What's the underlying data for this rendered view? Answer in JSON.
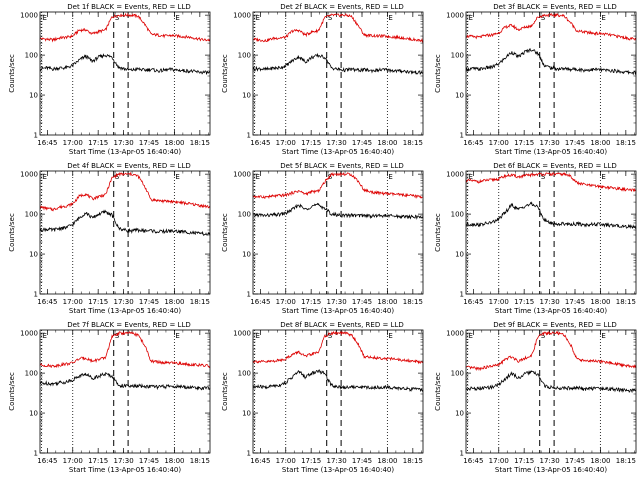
{
  "chart_data": {
    "type": "line",
    "ylabel": "Counts/sec",
    "xlabel": "Start Time (13-Apr-05 16:40:40)",
    "yscale": "log",
    "ylim": [
      1,
      1200
    ],
    "xlim": [
      "16:40:40",
      "18:21:00"
    ],
    "x_tick_labels": [
      "16:45",
      "17:00",
      "17:15",
      "17:30",
      "17:45",
      "18:00",
      "18:15"
    ],
    "x_tick_minutes": [
      4.33,
      19.33,
      34.33,
      49.33,
      64.33,
      79.33,
      94.33
    ],
    "y_tick_labels": [
      "1",
      "10",
      "100",
      "1000"
    ],
    "y_tick_values": [
      1,
      10,
      100,
      1000
    ],
    "series_legend": "BLACK = Events, RED = LLD",
    "colors": {
      "events": "#000000",
      "lld": "#dd0000"
    },
    "markers": [
      {
        "label": "E",
        "minute": 0.9,
        "style": "dotted"
      },
      {
        "label": "",
        "minute": 19.33,
        "style": "dotted"
      },
      {
        "label": "S",
        "minute": 43.5,
        "style": "dashed"
      },
      {
        "label": "",
        "minute": 52.0,
        "style": "dashed"
      },
      {
        "label": "E",
        "minute": 79.3,
        "style": "dotted"
      }
    ],
    "panels": [
      {
        "title": "Det 1f BLACK = Events, RED = LLD",
        "lld": [
          260,
          250,
          240,
          270,
          280,
          300,
          420,
          430,
          340,
          390,
          420,
          900,
          1000,
          1000,
          1000,
          950,
          600,
          330,
          320,
          300,
          310,
          300,
          290,
          280,
          260,
          240,
          240
        ],
        "events": [
          45,
          48,
          45,
          48,
          48,
          55,
          75,
          95,
          70,
          90,
          100,
          90,
          50,
          45,
          42,
          45,
          42,
          44,
          40,
          42,
          44,
          42,
          41,
          40,
          38,
          37,
          36
        ]
      },
      {
        "title": "Det 2f BLACK = Events, RED = LLD",
        "lld": [
          250,
          240,
          230,
          260,
          270,
          280,
          400,
          420,
          320,
          380,
          410,
          880,
          1000,
          1000,
          1000,
          950,
          580,
          320,
          310,
          300,
          300,
          290,
          280,
          270,
          250,
          240,
          230
        ],
        "events": [
          45,
          46,
          44,
          47,
          48,
          54,
          72,
          92,
          68,
          88,
          98,
          88,
          48,
          44,
          42,
          44,
          42,
          43,
          41,
          42,
          43,
          42,
          40,
          40,
          38,
          37,
          36
        ]
      },
      {
        "title": "Det 3f BLACK = Events, RED = LLD",
        "lld": [
          300,
          290,
          280,
          310,
          320,
          360,
          500,
          560,
          430,
          500,
          540,
          900,
          1000,
          1000,
          1000,
          960,
          650,
          400,
          380,
          360,
          350,
          340,
          320,
          300,
          280,
          260,
          250
        ],
        "events": [
          44,
          46,
          44,
          48,
          50,
          60,
          85,
          120,
          90,
          120,
          140,
          110,
          55,
          48,
          45,
          46,
          44,
          45,
          42,
          43,
          44,
          42,
          41,
          40,
          38,
          37,
          36
        ]
      },
      {
        "title": "Det 4f BLACK = Events, RED = LLD",
        "lld": [
          150,
          140,
          130,
          150,
          160,
          180,
          280,
          320,
          240,
          280,
          300,
          800,
          1000,
          1000,
          1000,
          900,
          500,
          230,
          220,
          210,
          210,
          200,
          190,
          180,
          170,
          160,
          150
        ],
        "events": [
          40,
          42,
          40,
          44,
          46,
          55,
          80,
          110,
          80,
          100,
          115,
          95,
          45,
          40,
          38,
          40,
          38,
          39,
          36,
          37,
          38,
          37,
          36,
          35,
          33,
          32,
          31
        ]
      },
      {
        "title": "Det 5f BLACK = Events, RED = LLD",
        "lld": [
          280,
          270,
          270,
          280,
          290,
          300,
          340,
          380,
          320,
          360,
          380,
          650,
          1000,
          1000,
          1000,
          1000,
          700,
          400,
          360,
          340,
          330,
          320,
          310,
          300,
          290,
          280,
          270
        ],
        "events": [
          95,
          95,
          92,
          95,
          98,
          105,
          130,
          170,
          130,
          160,
          170,
          140,
          100,
          95,
          92,
          94,
          92,
          93,
          90,
          91,
          92,
          90,
          88,
          87,
          86,
          85,
          84
        ]
      },
      {
        "title": "Det 6f BLACK = Events, RED = LLD",
        "lld": [
          700,
          680,
          650,
          700,
          720,
          760,
          900,
          950,
          850,
          920,
          960,
          1000,
          1000,
          1000,
          1000,
          1000,
          900,
          600,
          560,
          520,
          500,
          480,
          460,
          440,
          420,
          400,
          390
        ],
        "events": [
          55,
          56,
          54,
          58,
          62,
          75,
          110,
          170,
          130,
          160,
          180,
          150,
          70,
          60,
          56,
          58,
          56,
          57,
          54,
          55,
          56,
          54,
          52,
          51,
          50,
          49,
          48
        ]
      },
      {
        "title": "Det 7f BLACK = Events, RED = LLD",
        "lld": [
          160,
          155,
          150,
          160,
          170,
          180,
          230,
          240,
          200,
          220,
          240,
          800,
          1000,
          1000,
          1000,
          900,
          500,
          200,
          190,
          180,
          180,
          175,
          170,
          165,
          160,
          155,
          150
        ],
        "events": [
          55,
          56,
          54,
          58,
          60,
          68,
          85,
          95,
          75,
          85,
          95,
          85,
          50,
          48,
          46,
          48,
          46,
          47,
          45,
          46,
          47,
          46,
          45,
          44,
          43,
          42,
          42
        ]
      },
      {
        "title": "Det 8f BLACK = Events, RED = LLD",
        "lld": [
          200,
          195,
          190,
          200,
          210,
          230,
          290,
          340,
          260,
          300,
          330,
          850,
          1000,
          1000,
          1000,
          920,
          560,
          260,
          250,
          240,
          235,
          230,
          220,
          210,
          200,
          195,
          190
        ],
        "events": [
          45,
          46,
          44,
          48,
          50,
          58,
          80,
          110,
          80,
          100,
          115,
          95,
          50,
          46,
          44,
          46,
          44,
          45,
          43,
          44,
          45,
          44,
          42,
          41,
          40,
          39,
          38
        ]
      },
      {
        "title": "Det 9f BLACK = Events, RED = LLD",
        "lld": [
          140,
          135,
          130,
          140,
          150,
          160,
          220,
          260,
          200,
          240,
          260,
          820,
          1000,
          1000,
          1000,
          900,
          520,
          220,
          210,
          200,
          200,
          190,
          180,
          170,
          160,
          150,
          145
        ],
        "events": [
          40,
          42,
          40,
          43,
          45,
          52,
          72,
          100,
          75,
          95,
          108,
          90,
          48,
          44,
          42,
          43,
          42,
          43,
          40,
          41,
          42,
          41,
          40,
          39,
          38,
          37,
          36
        ]
      }
    ]
  }
}
